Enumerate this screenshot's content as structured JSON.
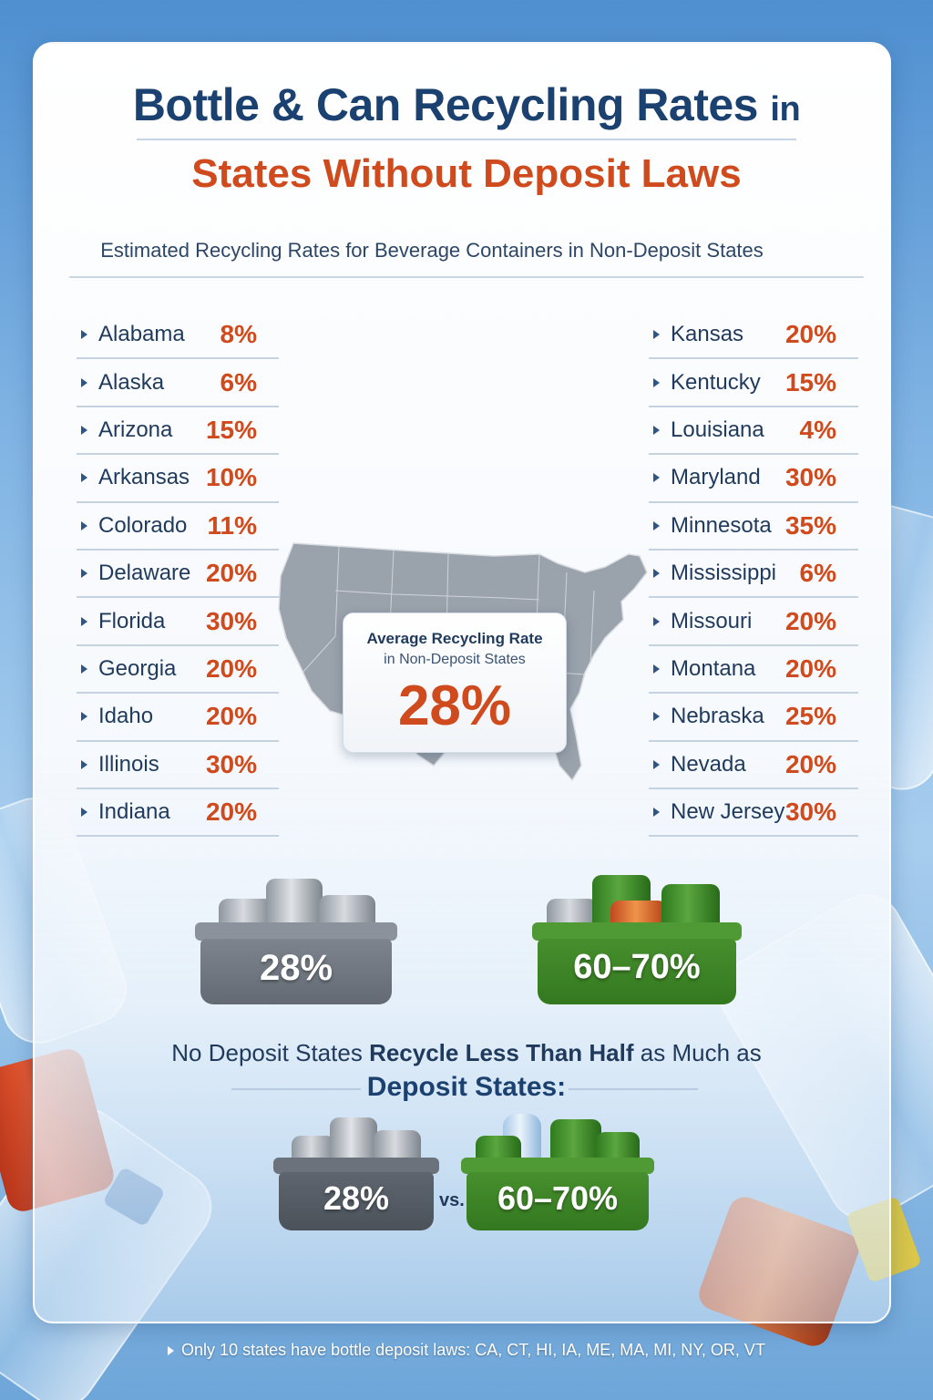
{
  "title": {
    "line1_main": "Bottle & Can Recycling Rates",
    "line1_suffix": "in",
    "line2": "States Without Deposit Laws"
  },
  "subtitle": "Estimated Recycling Rates for Beverage Containers in Non-Deposit States",
  "left_states": [
    {
      "name": "Alabama",
      "rate": "8%"
    },
    {
      "name": "Alaska",
      "rate": "6%"
    },
    {
      "name": "Arizona",
      "rate": "15%"
    },
    {
      "name": "Arkansas",
      "rate": "10%"
    },
    {
      "name": "Colorado",
      "rate": "11%"
    },
    {
      "name": "Delaware",
      "rate": "20%"
    },
    {
      "name": "Florida",
      "rate": "30%"
    },
    {
      "name": "Georgia",
      "rate": "20%"
    },
    {
      "name": "Idaho",
      "rate": "20%"
    },
    {
      "name": "Illinois",
      "rate": "30%"
    },
    {
      "name": "Indiana",
      "rate": "20%"
    }
  ],
  "right_states": [
    {
      "name": "Kansas",
      "rate": "20%"
    },
    {
      "name": "Kentucky",
      "rate": "15%"
    },
    {
      "name": "Louisiana",
      "rate": "4%"
    },
    {
      "name": "Maryland",
      "rate": "30%"
    },
    {
      "name": "Minnesota",
      "rate": "35%"
    },
    {
      "name": "Mississippi",
      "rate": "6%"
    },
    {
      "name": "Missouri",
      "rate": "20%"
    },
    {
      "name": "Montana",
      "rate": "20%"
    },
    {
      "name": "Nebraska",
      "rate": "25%"
    },
    {
      "name": "Nevada",
      "rate": "20%"
    },
    {
      "name": "New Jersey",
      "rate": "30%"
    }
  ],
  "average": {
    "title": "Average Recycling Rate",
    "subtitle": "in Non-Deposit States",
    "value": "28%"
  },
  "comparison_top": {
    "non_deposit": "28%",
    "deposit": "60–70%"
  },
  "tagline": {
    "part1": "No Deposit States",
    "part2": "Recycle Less Than Half",
    "part3": "as Much as",
    "line2": "Deposit States:"
  },
  "comparison_bottom": {
    "non_deposit": "28%",
    "vs": "vs.",
    "deposit": "60–70%"
  },
  "footer": "Only 10 states have bottle deposit laws: CA, CT, HI, IA, ME, MA, MI, NY, OR, VT",
  "colors": {
    "navy": "#1b4170",
    "orange": "#cf4a1c",
    "grey_bin": "#6f7680",
    "green_bin": "#3f8a2a"
  }
}
